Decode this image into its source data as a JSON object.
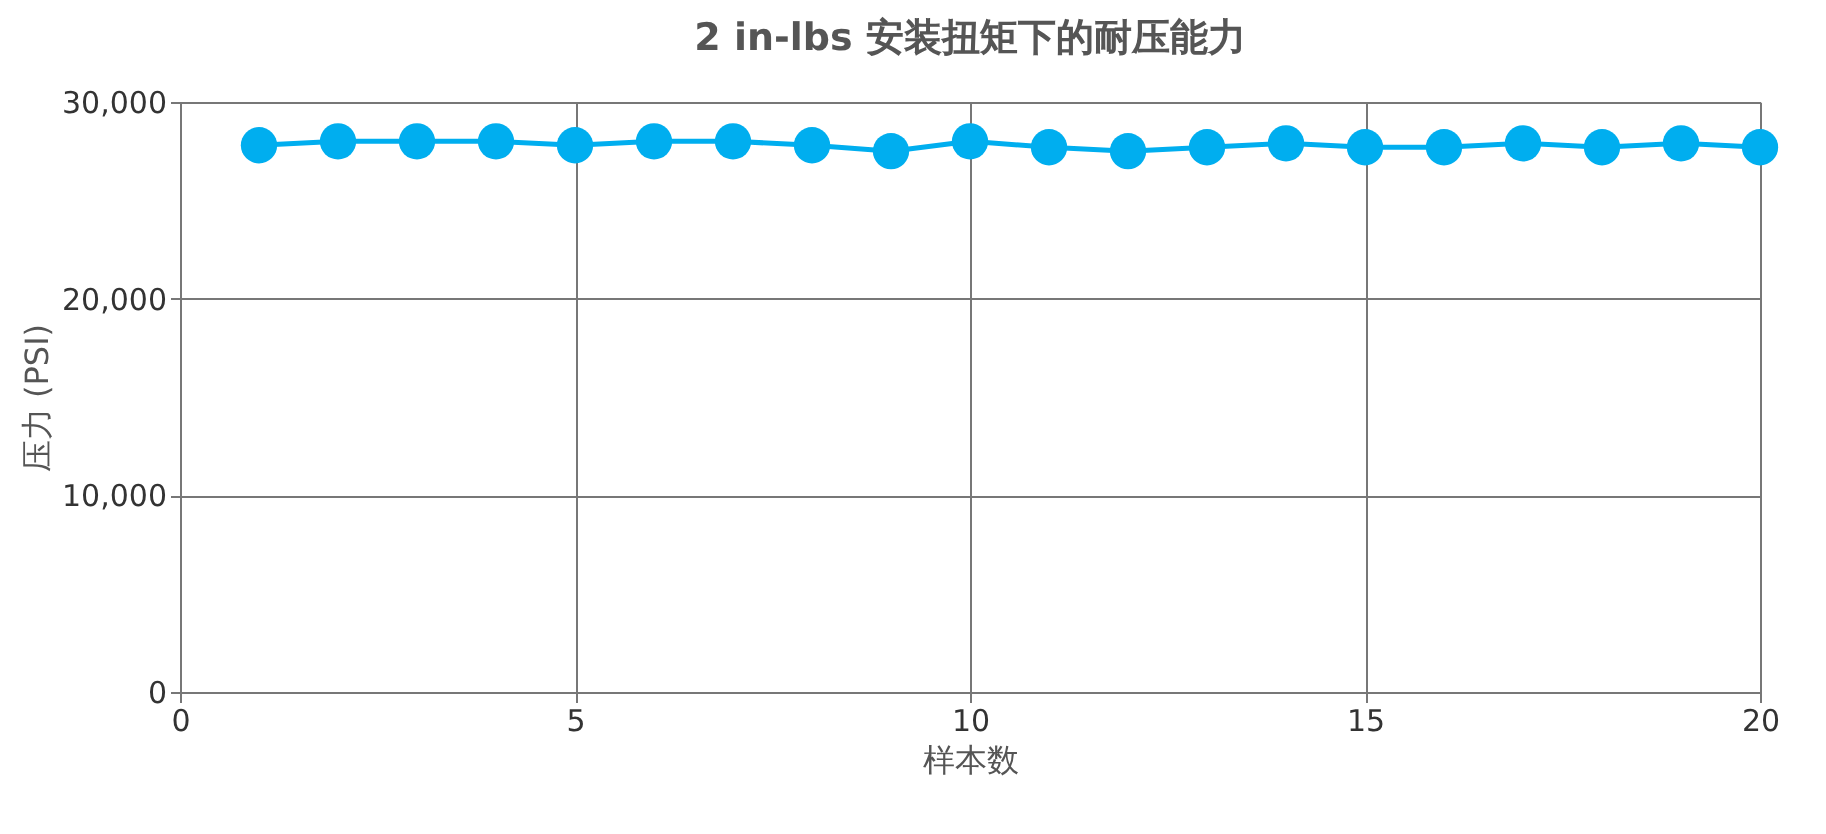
{
  "chart_data": {
    "type": "line",
    "title": "2 in-lbs 安装扭矩下的耐压能力",
    "xlabel": "样本数",
    "ylabel": "压力 (PSI)",
    "x": [
      1,
      2,
      3,
      4,
      5,
      6,
      7,
      8,
      9,
      10,
      11,
      12,
      13,
      14,
      15,
      16,
      17,
      18,
      19,
      20
    ],
    "series": [
      {
        "color": "#00aeef",
        "values": [
          27800,
          28000,
          28000,
          28000,
          27800,
          28000,
          28000,
          27800,
          27500,
          28000,
          27700,
          27500,
          27700,
          27900,
          27700,
          27700,
          27900,
          27700,
          27900,
          27700
        ]
      }
    ],
    "xlim": [
      0,
      20
    ],
    "xticks": [
      0,
      5,
      10,
      15,
      20
    ],
    "ylim": [
      0,
      30000
    ],
    "yticks": [
      0,
      {
        "value": 10000,
        "label": "10,000"
      },
      {
        "value": 20000,
        "label": "20,000"
      },
      {
        "value": 30000,
        "label": "30,000"
      }
    ],
    "grid": true,
    "legend": false,
    "marker": "circle",
    "line_style": "solid"
  }
}
